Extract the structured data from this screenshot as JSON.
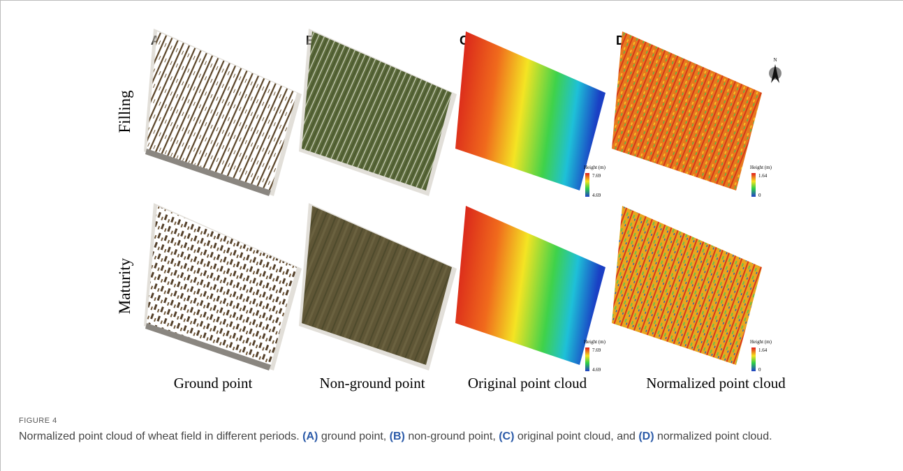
{
  "panels": {
    "letters": [
      "A",
      "B",
      "C",
      "D"
    ],
    "rows": [
      "Filling",
      "Maturity"
    ],
    "columns": [
      "Ground point",
      "Non-ground point",
      "Original point cloud",
      "Normalized point cloud"
    ]
  },
  "legends": [
    {
      "title": "Height (m)",
      "max": "7.69",
      "min": "4.69"
    },
    {
      "title": "Height (m)",
      "max": "1.64",
      "min": "0"
    }
  ],
  "north": "N",
  "figure": {
    "label": "FIGURE 4",
    "caption": [
      {
        "text": "Normalized point cloud of wheat field in different periods. ",
        "bold": false
      },
      {
        "text": "(A)",
        "bold": true
      },
      {
        "text": " ground point, ",
        "bold": false
      },
      {
        "text": "(B)",
        "bold": true
      },
      {
        "text": " non-ground point, ",
        "bold": false
      },
      {
        "text": "(C)",
        "bold": true
      },
      {
        "text": " original point cloud, and ",
        "bold": false
      },
      {
        "text": "(D)",
        "bold": true
      },
      {
        "text": " normalized point cloud.",
        "bold": false
      }
    ]
  }
}
